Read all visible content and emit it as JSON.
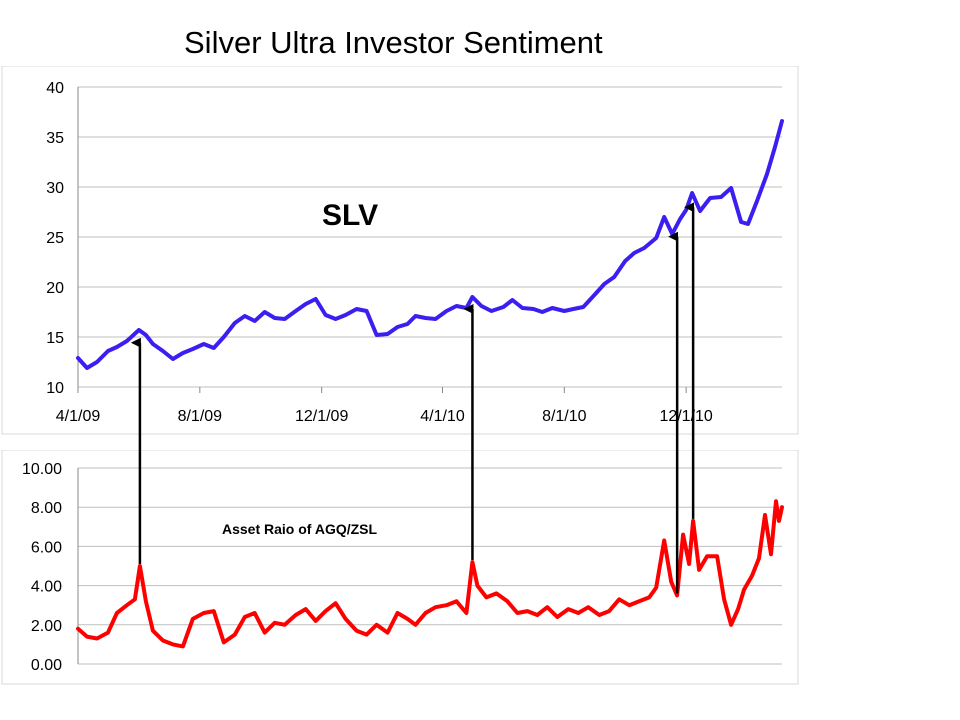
{
  "title": "Silver Ultra Investor Sentiment",
  "colors": {
    "slv_line": "#3a1ff0",
    "ratio_line": "#ff0000",
    "arrow": "#000000",
    "grid": "#bfbfbf"
  },
  "chart_data": [
    {
      "type": "line",
      "name": "slv-price",
      "annotation": "SLV",
      "x_tick_labels": [
        "4/1/09",
        "8/1/09",
        "12/1/09",
        "4/1/10",
        "8/1/10",
        "12/1/10"
      ],
      "x_ticks": [
        "2009-04-01",
        "2009-08-01",
        "2009-12-01",
        "2010-04-01",
        "2010-08-01",
        "2010-12-01"
      ],
      "xlim": [
        "2009-04-01",
        "2011-03-07"
      ],
      "ylim": [
        10,
        40
      ],
      "yticks": [
        10,
        15,
        20,
        25,
        30,
        35,
        40
      ],
      "grid": true,
      "series": [
        {
          "x": [
            "2009-04-01",
            "2009-04-10",
            "2009-04-20",
            "2009-05-01",
            "2009-05-10",
            "2009-05-20",
            "2009-06-01",
            "2009-06-08",
            "2009-06-15",
            "2009-06-25",
            "2009-07-05",
            "2009-07-15",
            "2009-07-25",
            "2009-08-05",
            "2009-08-15",
            "2009-08-25",
            "2009-09-05",
            "2009-09-15",
            "2009-09-25",
            "2009-10-05",
            "2009-10-15",
            "2009-10-25",
            "2009-11-05",
            "2009-11-15",
            "2009-11-25",
            "2009-12-05",
            "2009-12-15",
            "2009-12-25",
            "2010-01-05",
            "2010-01-15",
            "2010-01-25",
            "2010-02-05",
            "2010-02-15",
            "2010-02-25",
            "2010-03-05",
            "2010-03-15",
            "2010-03-25",
            "2010-04-05",
            "2010-04-15",
            "2010-04-25",
            "2010-05-01",
            "2010-05-10",
            "2010-05-20",
            "2010-06-01",
            "2010-06-10",
            "2010-06-20",
            "2010-07-01",
            "2010-07-10",
            "2010-07-20",
            "2010-08-01",
            "2010-08-10",
            "2010-08-20",
            "2010-09-01",
            "2010-09-10",
            "2010-09-20",
            "2010-10-01",
            "2010-10-10",
            "2010-10-20",
            "2010-11-01",
            "2010-11-09",
            "2010-11-17",
            "2010-11-25",
            "2010-12-01",
            "2010-12-07",
            "2010-12-15",
            "2010-12-25",
            "2011-01-05",
            "2011-01-15",
            "2011-01-25",
            "2011-02-01",
            "2011-02-10",
            "2011-02-20",
            "2011-02-28",
            "2011-03-07"
          ],
          "y": [
            12.9,
            11.9,
            12.5,
            13.6,
            14.0,
            14.6,
            15.7,
            15.2,
            14.3,
            13.6,
            12.8,
            13.4,
            13.8,
            14.3,
            13.9,
            15.0,
            16.4,
            17.1,
            16.6,
            17.5,
            16.9,
            16.8,
            17.6,
            18.3,
            18.8,
            17.2,
            16.8,
            17.2,
            17.8,
            17.6,
            15.2,
            15.3,
            16.0,
            16.3,
            17.1,
            16.9,
            16.8,
            17.6,
            18.1,
            17.9,
            19.0,
            18.1,
            17.6,
            18.0,
            18.7,
            17.9,
            17.8,
            17.5,
            17.9,
            17.6,
            17.8,
            18.0,
            19.3,
            20.3,
            21.0,
            22.6,
            23.4,
            23.9,
            24.9,
            27.0,
            25.3,
            26.8,
            27.7,
            29.4,
            27.6,
            28.9,
            29.0,
            29.9,
            26.5,
            26.3,
            28.6,
            31.3,
            34.0,
            36.6
          ]
        }
      ]
    },
    {
      "type": "line",
      "name": "agq-zsl-ratio",
      "annotation": "Asset Raio of AGQ/ZSL",
      "xlim": [
        "2009-04-01",
        "2011-03-07"
      ],
      "ylim": [
        0,
        10
      ],
      "yticks": [
        "0.00",
        "2.00",
        "4.00",
        "6.00",
        "8.00",
        "10.00"
      ],
      "grid": true,
      "series": [
        {
          "x": [
            "2009-04-01",
            "2009-04-10",
            "2009-04-20",
            "2009-05-01",
            "2009-05-10",
            "2009-05-20",
            "2009-05-28",
            "2009-06-02",
            "2009-06-08",
            "2009-06-15",
            "2009-06-25",
            "2009-07-05",
            "2009-07-15",
            "2009-07-25",
            "2009-08-05",
            "2009-08-15",
            "2009-08-25",
            "2009-09-05",
            "2009-09-15",
            "2009-09-25",
            "2009-10-05",
            "2009-10-15",
            "2009-10-25",
            "2009-11-05",
            "2009-11-15",
            "2009-11-25",
            "2009-12-05",
            "2009-12-15",
            "2009-12-25",
            "2010-01-05",
            "2010-01-15",
            "2010-01-25",
            "2010-02-05",
            "2010-02-15",
            "2010-02-25",
            "2010-03-05",
            "2010-03-15",
            "2010-03-25",
            "2010-04-05",
            "2010-04-15",
            "2010-04-25",
            "2010-05-01",
            "2010-05-06",
            "2010-05-15",
            "2010-05-25",
            "2010-06-05",
            "2010-06-15",
            "2010-06-25",
            "2010-07-05",
            "2010-07-15",
            "2010-07-25",
            "2010-08-05",
            "2010-08-15",
            "2010-08-25",
            "2010-09-05",
            "2010-09-15",
            "2010-09-25",
            "2010-10-05",
            "2010-10-15",
            "2010-10-25",
            "2010-11-01",
            "2010-11-09",
            "2010-11-16",
            "2010-11-22",
            "2010-11-28",
            "2010-12-04",
            "2010-12-08",
            "2010-12-14",
            "2010-12-22",
            "2011-01-01",
            "2011-01-08",
            "2011-01-15",
            "2011-01-22",
            "2011-01-28",
            "2011-02-05",
            "2011-02-12",
            "2011-02-18",
            "2011-02-24",
            "2011-03-01",
            "2011-03-04",
            "2011-03-07"
          ],
          "y": [
            1.8,
            1.4,
            1.3,
            1.6,
            2.6,
            3.0,
            3.3,
            5.0,
            3.2,
            1.7,
            1.2,
            1.0,
            0.9,
            2.3,
            2.6,
            2.7,
            1.1,
            1.5,
            2.4,
            2.6,
            1.6,
            2.1,
            2.0,
            2.5,
            2.8,
            2.2,
            2.7,
            3.1,
            2.3,
            1.7,
            1.5,
            2.0,
            1.6,
            2.6,
            2.3,
            2.0,
            2.6,
            2.9,
            3.0,
            3.2,
            2.6,
            5.2,
            4.0,
            3.4,
            3.6,
            3.2,
            2.6,
            2.7,
            2.5,
            2.9,
            2.4,
            2.8,
            2.6,
            2.9,
            2.5,
            2.7,
            3.3,
            3.0,
            3.2,
            3.4,
            3.9,
            6.3,
            4.2,
            3.5,
            6.6,
            5.1,
            7.3,
            4.8,
            5.5,
            5.5,
            3.3,
            2.0,
            2.8,
            3.8,
            4.5,
            5.4,
            7.6,
            5.6,
            8.3,
            7.3,
            8.0
          ]
        }
      ]
    }
  ],
  "arrow_dates": [
    "2009-06-02",
    "2010-05-01",
    "2010-11-22",
    "2010-12-08"
  ]
}
